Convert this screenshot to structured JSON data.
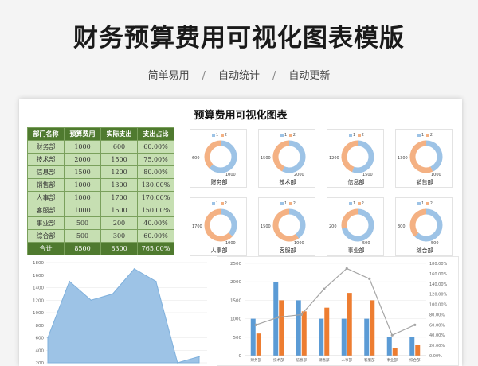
{
  "poster": {
    "title": "财务预算费用可视化图表模版",
    "tags": [
      "简单易用",
      "自动统计",
      "自动更新"
    ],
    "separator": "/"
  },
  "sheet": {
    "title": "预算费用可视化图表",
    "table": {
      "headers": [
        "部门名称",
        "预算费用",
        "实际支出",
        "支出占比"
      ],
      "rows": [
        [
          "财务部",
          "1000",
          "600",
          "60.00%"
        ],
        [
          "技术部",
          "2000",
          "1500",
          "75.00%"
        ],
        [
          "信息部",
          "1500",
          "1200",
          "80.00%"
        ],
        [
          "销售部",
          "1000",
          "1300",
          "130.00%"
        ],
        [
          "人事部",
          "1000",
          "1700",
          "170.00%"
        ],
        [
          "客服部",
          "1000",
          "1500",
          "150.00%"
        ],
        [
          "事业部",
          "500",
          "200",
          "40.00%"
        ],
        [
          "综合部",
          "500",
          "300",
          "60.00%"
        ]
      ],
      "total": [
        "合计",
        "8500",
        "8300",
        "765.00%"
      ]
    },
    "donut_legend": [
      "1",
      "2"
    ],
    "donuts": [
      {
        "dept": "财务部",
        "budget": 1000,
        "actual": 600,
        "budget_label": "1000",
        "actual_label": "600"
      },
      {
        "dept": "技术部",
        "budget": 2000,
        "actual": 1500,
        "budget_label": "2000",
        "actual_label": "1500"
      },
      {
        "dept": "信息部",
        "budget": 1500,
        "actual": 1200,
        "budget_label": "1500",
        "actual_label": "1200"
      },
      {
        "dept": "销售部",
        "budget": 1000,
        "actual": 1300,
        "budget_label": "1000",
        "actual_label": "1300"
      },
      {
        "dept": "人事部",
        "budget": 1000,
        "actual": 1700,
        "budget_label": "1000",
        "actual_label": "1700"
      },
      {
        "dept": "客服部",
        "budget": 1000,
        "actual": 1500,
        "budget_label": "1000",
        "actual_label": "1500"
      },
      {
        "dept": "事业部",
        "budget": 500,
        "actual": 200,
        "budget_label": "500",
        "actual_label": "200"
      },
      {
        "dept": "综合部",
        "budget": 500,
        "actual": 300,
        "budget_label": "500",
        "actual_label": "300"
      }
    ]
  },
  "colors": {
    "budget": "#9dc3e6",
    "actual": "#f4b183",
    "bar_budget": "#5b9bd5",
    "bar_actual": "#ed7d31",
    "line": "#a5a5a5",
    "area": "#9dc3e6",
    "area_stroke": "#7fb0dc"
  },
  "chart_data": [
    {
      "type": "area",
      "y_ticks": [
        "1800",
        "1600",
        "1400",
        "1200",
        "1000",
        "800",
        "600",
        "400",
        "200"
      ],
      "ylim": [
        200,
        1800
      ],
      "values": [
        600,
        1500,
        1200,
        1300,
        1700,
        1500,
        200,
        300
      ]
    },
    {
      "type": "bar",
      "categories": [
        "财务部",
        "技术部",
        "信息部",
        "销售部",
        "人事部",
        "客服部",
        "事业部",
        "综合部"
      ],
      "series": [
        {
          "values": [
            1000,
            2000,
            1500,
            1000,
            1000,
            1000,
            500,
            500
          ]
        },
        {
          "values": [
            600,
            1500,
            1200,
            1300,
            1700,
            1500,
            200,
            300
          ]
        }
      ],
      "line": [
        0.6,
        0.75,
        0.8,
        1.3,
        1.7,
        1.5,
        0.4,
        0.6
      ],
      "y_left_ticks": [
        "2500",
        "2000",
        "1500",
        "1000",
        "500",
        "0"
      ],
      "y_right_ticks": [
        "180.00%",
        "160.00%",
        "140.00%",
        "120.00%",
        "100.00%",
        "80.00%",
        "60.00%",
        "40.00%",
        "20.00%",
        "0.00%"
      ],
      "ylim": [
        0,
        2500
      ],
      "ylim_right": [
        0,
        1.8
      ]
    }
  ]
}
